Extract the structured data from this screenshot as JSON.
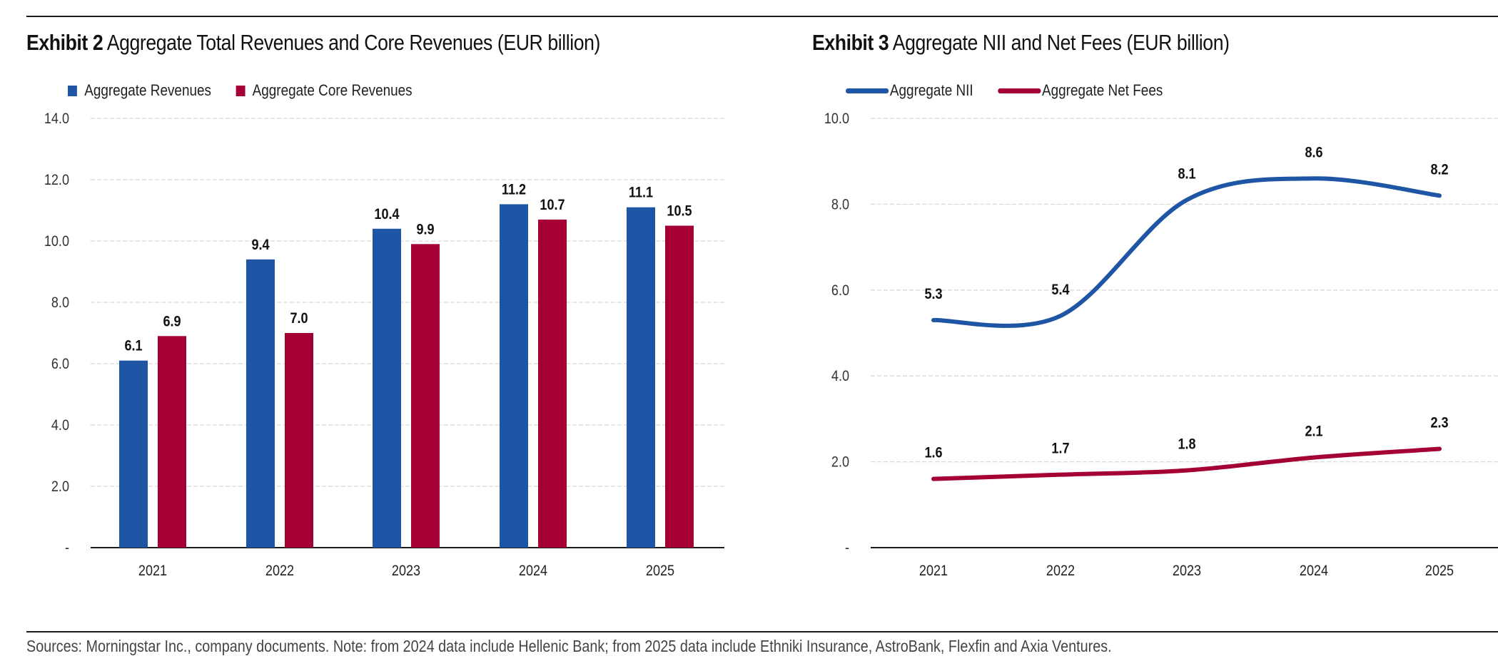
{
  "colors": {
    "blue": "#1F55A5",
    "red": "#A50034",
    "grid": "#d9d9d9",
    "axis": "#1a1a1a"
  },
  "chart_data": [
    {
      "type": "bar",
      "title_bold": "Exhibit 2",
      "title": "Aggregate Total Revenues and Core Revenues (EUR billion)",
      "categories": [
        "2021",
        "2022",
        "2023",
        "2024",
        "2025"
      ],
      "series": [
        {
          "name": "Aggregate Revenues",
          "color_key": "blue",
          "values": [
            6.1,
            9.4,
            10.4,
            11.2,
            11.1
          ],
          "labels": [
            "6.1",
            "9.4",
            "10.4",
            "11.2",
            "11.1"
          ]
        },
        {
          "name": "Aggregate Core Revenues",
          "color_key": "red",
          "values": [
            6.9,
            7.0,
            9.9,
            10.7,
            10.5
          ],
          "labels": [
            "6.9",
            "7.0",
            "9.9",
            "10.7",
            "10.5"
          ]
        }
      ],
      "ylim": [
        0,
        14
      ],
      "yticks": [
        0,
        2,
        4,
        6,
        8,
        10,
        12,
        14
      ],
      "ytick_labels": [
        "-",
        "2.0",
        "4.0",
        "6.0",
        "8.0",
        "10.0",
        "12.0",
        "14.0"
      ],
      "xlabel": "",
      "ylabel": "",
      "grid": true,
      "legend_position": "top-left"
    },
    {
      "type": "line",
      "title_bold": "Exhibit 3",
      "title": "Aggregate NII and Net Fees (EUR billion)",
      "categories": [
        "2021",
        "2022",
        "2023",
        "2024",
        "2025"
      ],
      "series": [
        {
          "name": "Aggregate NII",
          "color_key": "blue",
          "values": [
            5.3,
            5.4,
            8.1,
            8.6,
            8.2
          ],
          "labels": [
            "5.3",
            "5.4",
            "8.1",
            "8.6",
            "8.2"
          ]
        },
        {
          "name": "Aggregate Net Fees",
          "color_key": "red",
          "values": [
            1.6,
            1.7,
            1.8,
            2.1,
            2.3
          ],
          "labels": [
            "1.6",
            "1.7",
            "1.8",
            "2.1",
            "2.3"
          ]
        }
      ],
      "ylim": [
        0,
        10
      ],
      "yticks": [
        0,
        2,
        4,
        6,
        8,
        10
      ],
      "ytick_labels": [
        "-",
        "2.0",
        "4.0",
        "6.0",
        "8.0",
        "10.0"
      ],
      "xlabel": "",
      "ylabel": "",
      "grid": true,
      "smooth": true,
      "legend_position": "top-left"
    }
  ],
  "footnote": "Sources: Morningstar Inc., company documents. Note: from 2024 data include Hellenic Bank; from 2025 data include Ethniki Insurance, AstroBank, Flexfin and Axia Ventures."
}
